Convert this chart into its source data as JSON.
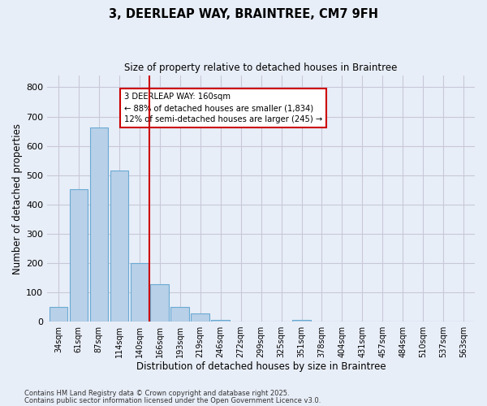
{
  "title1": "3, DEERLEAP WAY, BRAINTREE, CM7 9FH",
  "title2": "Size of property relative to detached houses in Braintree",
  "xlabel": "Distribution of detached houses by size in Braintree",
  "ylabel": "Number of detached properties",
  "categories": [
    "34sqm",
    "61sqm",
    "87sqm",
    "114sqm",
    "140sqm",
    "166sqm",
    "193sqm",
    "219sqm",
    "246sqm",
    "272sqm",
    "299sqm",
    "325sqm",
    "351sqm",
    "378sqm",
    "404sqm",
    "431sqm",
    "457sqm",
    "484sqm",
    "510sqm",
    "537sqm",
    "563sqm"
  ],
  "values": [
    50,
    452,
    663,
    515,
    200,
    128,
    50,
    27,
    5,
    0,
    0,
    0,
    5,
    0,
    0,
    0,
    0,
    0,
    0,
    0,
    0
  ],
  "bar_color": "#b8d0e8",
  "bar_edge_color": "#6aaad4",
  "vline_color": "#cc0000",
  "annotation_text": "3 DEERLEAP WAY: 160sqm\n← 88% of detached houses are smaller (1,834)\n12% of semi-detached houses are larger (245) →",
  "annotation_box_color": "#ffffff",
  "annotation_box_edge": "#cc0000",
  "ylim": [
    0,
    840
  ],
  "yticks": [
    0,
    100,
    200,
    300,
    400,
    500,
    600,
    700,
    800
  ],
  "footer1": "Contains HM Land Registry data © Crown copyright and database right 2025.",
  "footer2": "Contains public sector information licensed under the Open Government Licence v3.0.",
  "bg_color": "#e8eef8",
  "plot_bg_color": "#e8eef8",
  "grid_color": "#c8c8d8"
}
